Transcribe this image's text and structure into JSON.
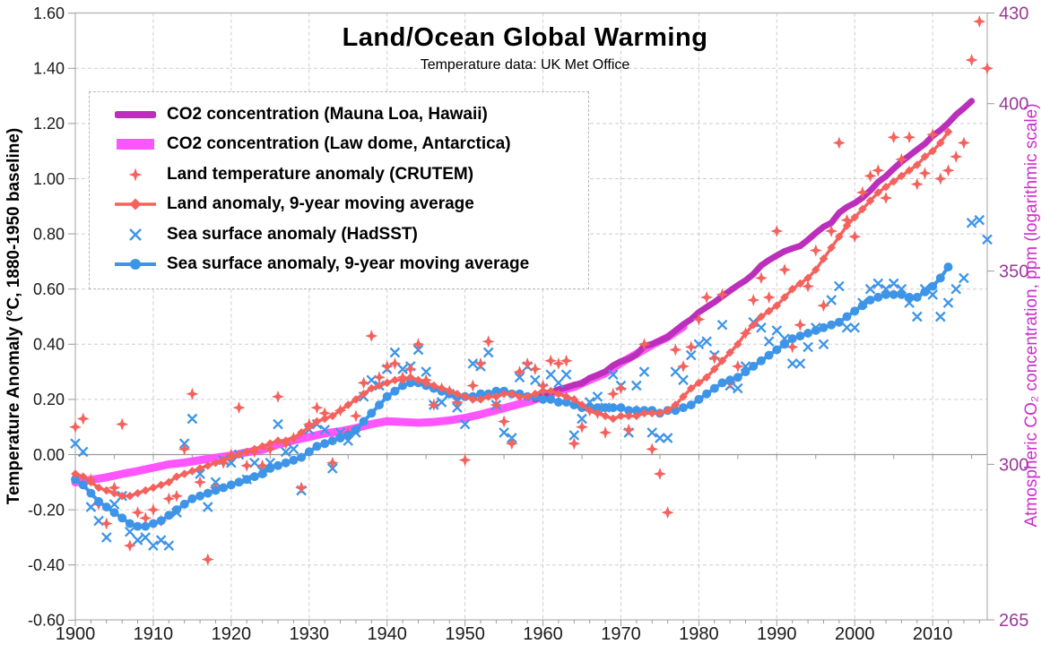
{
  "colors": {
    "co2_mauna_loa": "#bb2fbb",
    "co2_law_dome": "#ff55ff",
    "land": "#f4625e",
    "sea": "#3e95e8",
    "grid": "#cdcdcd",
    "frame": "#b0b0b0",
    "zero_line": "#9a9a9a",
    "tick_label": "#1a1a1a",
    "right_tick_label": "#993a99",
    "right_axis_title": "#cc2dcc"
  },
  "chart_data": {
    "type": "line",
    "title": "Land/Ocean Global Warming",
    "subtitle": "Temperature data: UK Met Office",
    "ylabel_left": "Temperature Anomaly (°C, 1880-1950 baseline)",
    "ylabel_right": "Atmospheric CO₂ concentration, ppm (logarithmic scale)",
    "grid": "on",
    "legend_position": "upper-left",
    "x": {
      "min": 1900,
      "max": 2017,
      "tick_labels": [
        "1900",
        "1910",
        "1920",
        "1930",
        "1940",
        "1950",
        "1960",
        "1970",
        "1980",
        "1990",
        "2000",
        "2010"
      ],
      "tick_values": [
        1900,
        1910,
        1920,
        1930,
        1940,
        1950,
        1960,
        1970,
        1980,
        1990,
        2000,
        2010
      ],
      "minor_tick_step_years": 2
    },
    "y_left": {
      "min": -0.6,
      "max": 1.6,
      "tick_labels": [
        "1.60",
        "1.40",
        "1.20",
        "1.00",
        "0.80",
        "0.60",
        "0.40",
        "0.20",
        "0.00",
        "-0.20",
        "-0.40",
        "-0.60"
      ],
      "tick_values": [
        1.6,
        1.4,
        1.2,
        1.0,
        0.8,
        0.6,
        0.4,
        0.2,
        0.0,
        -0.2,
        -0.4,
        -0.6
      ]
    },
    "y_right": {
      "min": 265,
      "max": 430,
      "scale": "log",
      "tick_labels": [
        "430",
        "400",
        "350",
        "300",
        "265"
      ],
      "tick_values": [
        430,
        400,
        350,
        300,
        265
      ]
    },
    "series": {
      "co2_mauna_loa": {
        "label": "CO2 concentration (Mauna Loa, Hawaii)",
        "axis": "right",
        "unit": "ppm",
        "style": "thick-line",
        "start": 1959,
        "step": 1,
        "values": [
          315.97,
          316.91,
          317.64,
          318.45,
          318.99,
          319.62,
          320.04,
          321.38,
          322.16,
          323.04,
          324.62,
          325.68,
          326.32,
          327.45,
          329.68,
          330.18,
          331.08,
          332.05,
          333.78,
          335.41,
          336.78,
          338.68,
          340.1,
          341.44,
          343.03,
          344.58,
          346.04,
          347.39,
          349.16,
          351.56,
          353.07,
          354.35,
          355.57,
          356.38,
          357.07,
          358.82,
          360.8,
          362.59,
          363.71,
          366.65,
          368.33,
          369.52,
          371.13,
          373.22,
          375.77,
          377.49,
          379.8,
          381.9,
          383.76,
          385.59,
          387.37,
          389.85,
          391.63,
          393.82,
          396.48,
          398.55,
          400.83
        ]
      },
      "co2_law_dome": {
        "label": "CO2 concentration (Law dome, Antarctica)",
        "axis": "right",
        "unit": "ppm",
        "style": "thick-line",
        "start": 1900,
        "step": 2,
        "values": [
          295.7,
          296.3,
          296.9,
          297.7,
          298.4,
          299.2,
          300.0,
          300.4,
          301.0,
          301.6,
          302.1,
          302.9,
          303.5,
          304.8,
          305.8,
          306.6,
          307.5,
          308.0,
          308.8,
          309.8,
          310.5,
          310.3,
          310.1,
          310.3,
          310.7,
          311.3,
          312.2,
          313.2,
          314.3,
          315.3,
          316.6,
          318.1,
          319.1,
          320.9,
          322.6,
          325.3,
          327.6,
          330.0,
          332.0,
          334.8
        ]
      },
      "land_annual": {
        "label": "Land temperature anomaly (CRUTEM)",
        "axis": "left",
        "unit": "°C",
        "style": "scatter",
        "marker": "four-point-star",
        "start": 1900,
        "step": 1,
        "values": [
          0.1,
          0.13,
          -0.09,
          -0.18,
          -0.25,
          -0.12,
          0.11,
          -0.33,
          -0.21,
          -0.23,
          -0.2,
          -0.24,
          -0.16,
          -0.15,
          0.02,
          0.22,
          -0.1,
          -0.38,
          -0.12,
          -0.03,
          0.0,
          0.17,
          -0.04,
          0.01,
          -0.04,
          0.02,
          0.21,
          0.04,
          0.06,
          -0.12,
          0.11,
          0.17,
          0.15,
          -0.03,
          0.16,
          0.08,
          0.14,
          0.26,
          0.43,
          0.28,
          0.32,
          0.33,
          0.28,
          0.31,
          0.4,
          0.27,
          0.18,
          0.24,
          0.23,
          0.19,
          -0.02,
          0.25,
          0.33,
          0.41,
          0.18,
          0.12,
          0.04,
          0.3,
          0.33,
          0.31,
          0.25,
          0.34,
          0.33,
          0.34,
          0.04,
          0.1,
          0.16,
          0.15,
          0.08,
          0.22,
          0.24,
          0.09,
          0.16,
          0.4,
          0.02,
          -0.07,
          -0.21,
          0.38,
          0.32,
          0.39,
          0.49,
          0.57,
          0.35,
          0.58,
          0.26,
          0.32,
          0.44,
          0.56,
          0.64,
          0.57,
          0.81,
          0.67,
          0.39,
          0.47,
          0.61,
          0.74,
          0.54,
          0.81,
          1.13,
          0.85,
          0.79,
          0.95,
          1.01,
          1.03,
          0.93,
          1.15,
          1.07,
          1.15,
          0.98,
          1.02,
          1.16,
          1.0,
          1.03,
          1.08,
          1.13,
          1.43,
          1.57,
          1.4
        ]
      },
      "land_ma9": {
        "label": "Land anomaly, 9-year moving average",
        "axis": "left",
        "unit": "°C",
        "style": "line",
        "marker": "diamond",
        "start": 1900,
        "step": 1,
        "values": [
          -0.07,
          -0.08,
          -0.1,
          -0.12,
          -0.13,
          -0.14,
          -0.15,
          -0.15,
          -0.14,
          -0.13,
          -0.12,
          -0.11,
          -0.1,
          -0.08,
          -0.07,
          -0.06,
          -0.05,
          -0.04,
          -0.03,
          -0.02,
          -0.01,
          0.0,
          0.01,
          0.02,
          0.03,
          0.04,
          0.05,
          0.05,
          0.06,
          0.08,
          0.1,
          0.12,
          0.13,
          0.14,
          0.16,
          0.18,
          0.2,
          0.22,
          0.24,
          0.25,
          0.26,
          0.27,
          0.27,
          0.28,
          0.27,
          0.26,
          0.25,
          0.24,
          0.23,
          0.22,
          0.21,
          0.2,
          0.2,
          0.21,
          0.21,
          0.22,
          0.22,
          0.21,
          0.21,
          0.22,
          0.23,
          0.23,
          0.22,
          0.21,
          0.2,
          0.18,
          0.16,
          0.15,
          0.14,
          0.13,
          0.14,
          0.14,
          0.14,
          0.15,
          0.15,
          0.15,
          0.16,
          0.18,
          0.21,
          0.24,
          0.26,
          0.28,
          0.31,
          0.34,
          0.37,
          0.4,
          0.44,
          0.47,
          0.5,
          0.52,
          0.54,
          0.57,
          0.6,
          0.62,
          0.64,
          0.67,
          0.71,
          0.75,
          0.79,
          0.83,
          0.86,
          0.89,
          0.92,
          0.95,
          0.97,
          0.99,
          1.01,
          1.03,
          1.05,
          1.08,
          1.1,
          1.13,
          1.17
        ]
      },
      "sea_annual": {
        "label": "Sea surface anomaly (HadSST)",
        "axis": "left",
        "unit": "°C",
        "style": "scatter",
        "marker": "x",
        "start": 1900,
        "step": 1,
        "values": [
          0.04,
          0.01,
          -0.19,
          -0.24,
          -0.3,
          -0.18,
          -0.15,
          -0.28,
          -0.31,
          -0.3,
          -0.33,
          -0.31,
          -0.33,
          -0.21,
          0.04,
          0.13,
          -0.07,
          -0.19,
          -0.1,
          -0.02,
          -0.03,
          0.0,
          -0.09,
          -0.03,
          -0.06,
          -0.03,
          0.11,
          0.01,
          0.02,
          -0.13,
          0.09,
          0.11,
          0.09,
          -0.05,
          0.08,
          0.05,
          0.08,
          0.21,
          0.27,
          0.25,
          0.31,
          0.37,
          0.31,
          0.32,
          0.38,
          0.3,
          0.18,
          0.19,
          0.22,
          0.17,
          0.11,
          0.33,
          0.32,
          0.37,
          0.18,
          0.08,
          0.06,
          0.28,
          0.32,
          0.27,
          0.24,
          0.29,
          0.26,
          0.29,
          0.07,
          0.13,
          0.19,
          0.21,
          0.17,
          0.29,
          0.25,
          0.08,
          0.25,
          0.3,
          0.08,
          0.06,
          0.06,
          0.3,
          0.27,
          0.36,
          0.4,
          0.41,
          0.36,
          0.47,
          0.25,
          0.24,
          0.32,
          0.48,
          0.46,
          0.41,
          0.45,
          0.42,
          0.33,
          0.33,
          0.39,
          0.46,
          0.4,
          0.56,
          0.61,
          0.46,
          0.46,
          0.55,
          0.6,
          0.62,
          0.6,
          0.62,
          0.6,
          0.55,
          0.5,
          0.6,
          0.58,
          0.5,
          0.55,
          0.6,
          0.64,
          0.84,
          0.85,
          0.78
        ]
      },
      "sea_ma9": {
        "label": "Sea surface anomaly, 9-year moving average",
        "axis": "left",
        "unit": "°C",
        "style": "line",
        "marker": "circle",
        "start": 1900,
        "step": 1,
        "values": [
          -0.09,
          -0.11,
          -0.14,
          -0.17,
          -0.19,
          -0.21,
          -0.23,
          -0.25,
          -0.26,
          -0.26,
          -0.25,
          -0.24,
          -0.22,
          -0.2,
          -0.18,
          -0.16,
          -0.15,
          -0.14,
          -0.13,
          -0.12,
          -0.11,
          -0.1,
          -0.09,
          -0.08,
          -0.07,
          -0.05,
          -0.04,
          -0.03,
          -0.02,
          -0.01,
          0.01,
          0.03,
          0.04,
          0.05,
          0.06,
          0.07,
          0.09,
          0.12,
          0.15,
          0.18,
          0.21,
          0.23,
          0.25,
          0.26,
          0.26,
          0.25,
          0.24,
          0.23,
          0.22,
          0.21,
          0.21,
          0.21,
          0.22,
          0.22,
          0.23,
          0.23,
          0.22,
          0.22,
          0.21,
          0.21,
          0.2,
          0.2,
          0.19,
          0.19,
          0.18,
          0.17,
          0.17,
          0.17,
          0.17,
          0.17,
          0.17,
          0.16,
          0.16,
          0.16,
          0.16,
          0.15,
          0.16,
          0.16,
          0.17,
          0.18,
          0.2,
          0.22,
          0.24,
          0.26,
          0.27,
          0.28,
          0.3,
          0.32,
          0.34,
          0.36,
          0.38,
          0.4,
          0.42,
          0.43,
          0.44,
          0.45,
          0.46,
          0.47,
          0.48,
          0.5,
          0.52,
          0.54,
          0.56,
          0.57,
          0.58,
          0.58,
          0.58,
          0.57,
          0.57,
          0.59,
          0.61,
          0.64,
          0.68
        ]
      }
    }
  },
  "legend": {
    "order": [
      "co2_mauna_loa",
      "co2_law_dome",
      "land_annual",
      "land_ma9",
      "sea_annual",
      "sea_ma9"
    ]
  }
}
